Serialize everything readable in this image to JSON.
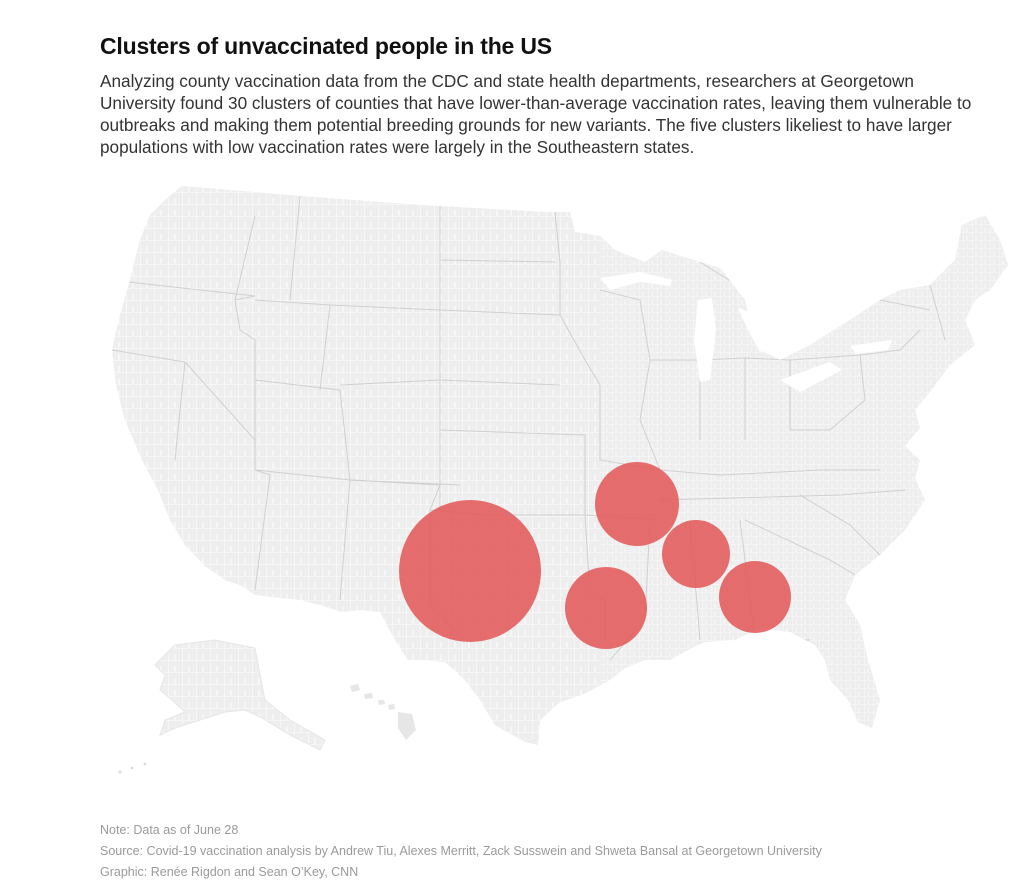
{
  "header": {
    "title": "Clusters of unvaccinated people in the US",
    "description": "Analyzing county vaccination data from the CDC and state health departments, researchers at Georgetown University found 30 clusters of counties that have lower-than-average vaccination rates, leaving them vulnerable to outbreaks and making them potential breeding grounds for new variants. The five clusters likeliest to have larger populations with low vaccination rates were largely in the Southeastern states."
  },
  "map": {
    "region": "United States (county map with Alaska and Hawaii insets)",
    "land_color": "#eeeeee",
    "border_color": "#ffffff",
    "state_border_color": "#d0d0d0",
    "cluster_color": "#e35a5a",
    "clusters": [
      {
        "location": "Texas / Oklahoma"
      },
      {
        "location": "Missouri / Arkansas"
      },
      {
        "location": "Louisiana / Arkansas"
      },
      {
        "location": "Tennessee / Mississippi / Alabama"
      },
      {
        "location": "Alabama / Georgia"
      }
    ]
  },
  "footer": {
    "note": "Note: Data as of June 28",
    "source": "Source: Covid-19 vaccination analysis by Andrew Tiu, Alexes Merritt, Zack Susswein and Shweta Bansal at Georgetown University",
    "graphic": "Graphic: Renée Rigdon and Sean O’Key, CNN"
  }
}
